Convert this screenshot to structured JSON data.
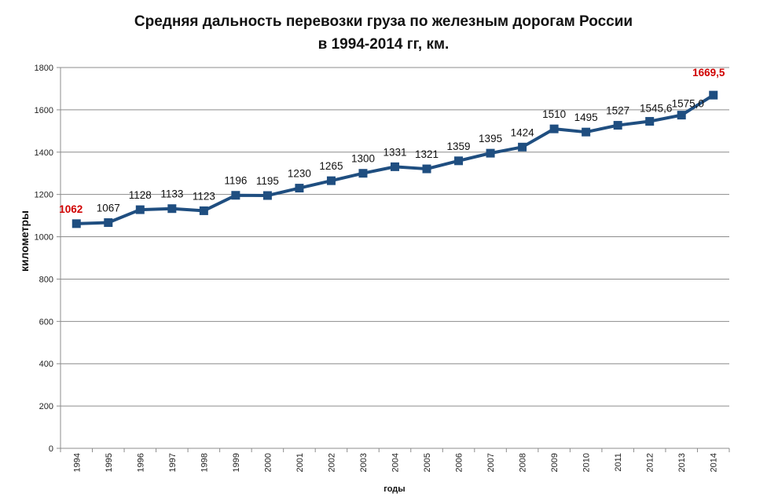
{
  "chart_data": {
    "type": "line",
    "title_lines": [
      "Средняя дальность перевозки груза по железным дорогам России",
      "в 1994-2014 гг, км."
    ],
    "xlabel": "годы",
    "ylabel": "километры",
    "ylim": [
      0,
      1800
    ],
    "yticks": [
      0,
      200,
      400,
      600,
      800,
      1000,
      1200,
      1400,
      1600,
      1800
    ],
    "grid": true,
    "line_color": "#1f4e80",
    "highlight_color": "#d00000",
    "categories": [
      "1994",
      "1995",
      "1996",
      "1997",
      "1998",
      "1999",
      "2000",
      "2001",
      "2002",
      "2003",
      "2004",
      "2005",
      "2006",
      "2007",
      "2008",
      "2009",
      "2010",
      "2011",
      "2012",
      "2013",
      "2014"
    ],
    "values": [
      1062,
      1067,
      1128,
      1133,
      1123,
      1196,
      1195,
      1230,
      1265,
      1300,
      1331,
      1321,
      1359,
      1395,
      1424,
      1510,
      1495,
      1527,
      1545.6,
      1575.0,
      1669.5
    ],
    "data_labels": [
      "1062",
      "1067",
      "1128",
      "1133",
      "1123",
      "1196",
      "1195",
      "1230",
      "1265",
      "1300",
      "1331",
      "1321",
      "1359",
      "1395",
      "1424",
      "1510",
      "1495",
      "1527",
      "1545,6",
      "1575,0",
      "1669,5"
    ],
    "highlighted": [
      "1994",
      "2014"
    ]
  }
}
